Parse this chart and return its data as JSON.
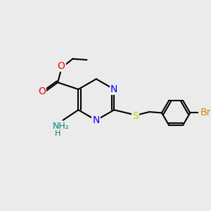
{
  "background_color": "#ebebeb",
  "line_color": "#000000",
  "bond_lw": 1.5,
  "atom_colors": {
    "N": "#0000ff",
    "O": "#ff0000",
    "S": "#cccc00",
    "Br": "#cc8800",
    "C": "#000000",
    "H": "#888888",
    "NH2": "#008080"
  },
  "font_size": 9
}
